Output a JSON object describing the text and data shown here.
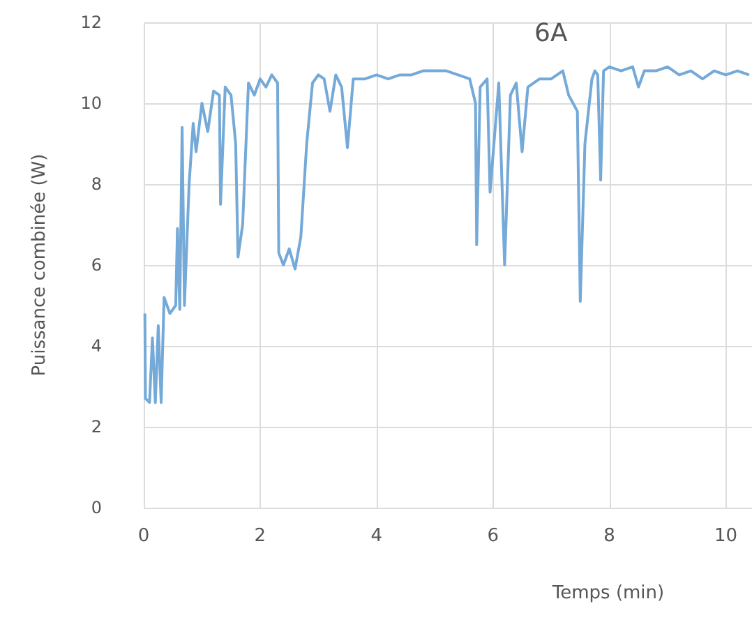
{
  "chart_data": {
    "type": "line",
    "title": "6A",
    "xlabel": "Temps (min)",
    "ylabel": "Puissance combinée (W)",
    "xlim": [
      0,
      10.45
    ],
    "xticks": [
      0,
      2,
      4,
      6,
      8,
      10
    ],
    "ylim": [
      0,
      12
    ],
    "yticks": [
      0,
      2,
      4,
      6,
      8,
      10,
      12
    ],
    "grid": true,
    "marker": "none",
    "line_style": "solid",
    "series": [
      {
        "color": "#74a9d8",
        "x": [
          0.02,
          0.03,
          0.1,
          0.15,
          0.2,
          0.25,
          0.3,
          0.35,
          0.45,
          0.55,
          0.58,
          0.62,
          0.66,
          0.7,
          0.78,
          0.85,
          0.9,
          1.0,
          1.1,
          1.2,
          1.3,
          1.32,
          1.4,
          1.5,
          1.58,
          1.62,
          1.7,
          1.8,
          1.9,
          2.0,
          2.1,
          2.2,
          2.3,
          2.32,
          2.4,
          2.5,
          2.6,
          2.7,
          2.8,
          2.9,
          3.0,
          3.1,
          3.2,
          3.3,
          3.4,
          3.5,
          3.6,
          3.8,
          4.0,
          4.2,
          4.4,
          4.6,
          4.8,
          5.0,
          5.2,
          5.4,
          5.6,
          5.7,
          5.72,
          5.78,
          5.9,
          5.95,
          6.1,
          6.2,
          6.3,
          6.4,
          6.5,
          6.6,
          6.8,
          7.0,
          7.2,
          7.3,
          7.45,
          7.5,
          7.58,
          7.7,
          7.75,
          7.8,
          7.85,
          7.9,
          8.0,
          8.2,
          8.4,
          8.5,
          8.6,
          8.8,
          9.0,
          9.2,
          9.4,
          9.6,
          9.8,
          10.0,
          10.2,
          10.4
        ],
        "values": [
          4.8,
          2.7,
          2.6,
          4.2,
          2.6,
          4.5,
          2.6,
          5.2,
          4.8,
          5.0,
          6.9,
          4.9,
          9.4,
          5.0,
          8.0,
          9.5,
          8.8,
          10.0,
          9.3,
          10.3,
          10.2,
          7.5,
          10.4,
          10.2,
          9.0,
          6.2,
          7.0,
          10.5,
          10.2,
          10.6,
          10.4,
          10.7,
          10.5,
          6.3,
          6.0,
          6.4,
          5.9,
          6.7,
          9.0,
          10.5,
          10.7,
          10.6,
          9.8,
          10.7,
          10.4,
          8.9,
          10.6,
          10.6,
          10.7,
          10.6,
          10.7,
          10.7,
          10.8,
          10.8,
          10.8,
          10.7,
          10.6,
          10.0,
          6.5,
          10.4,
          10.6,
          7.8,
          10.5,
          6.0,
          10.2,
          10.5,
          8.8,
          10.4,
          10.6,
          10.6,
          10.8,
          10.2,
          9.8,
          5.1,
          9.0,
          10.6,
          10.8,
          10.7,
          8.1,
          10.8,
          10.9,
          10.8,
          10.9,
          10.4,
          10.8,
          10.8,
          10.9,
          10.7,
          10.8,
          10.6,
          10.8,
          10.7,
          10.8,
          10.7
        ]
      }
    ]
  }
}
